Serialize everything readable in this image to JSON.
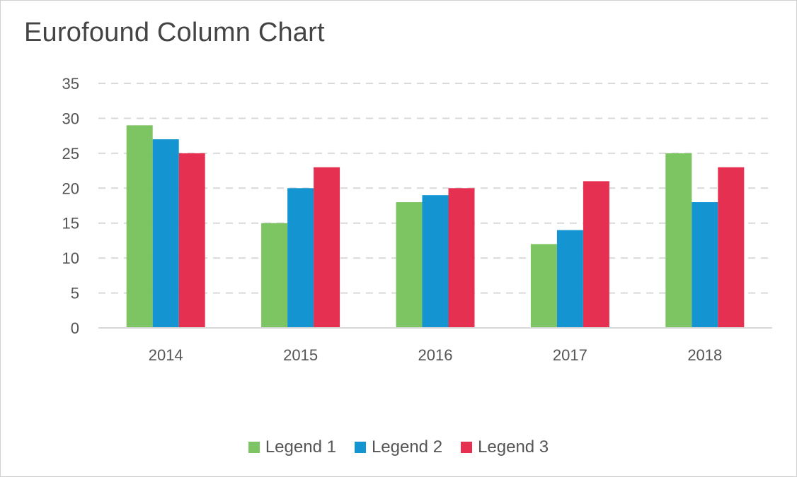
{
  "chart_data": {
    "type": "bar",
    "title": "Eurofound Column Chart",
    "categories": [
      "2014",
      "2015",
      "2016",
      "2017",
      "2018"
    ],
    "series": [
      {
        "name": "Legend 1",
        "color": "#7dc462",
        "values": [
          29,
          15,
          18,
          12,
          25
        ]
      },
      {
        "name": "Legend 2",
        "color": "#1495d1",
        "values": [
          27,
          20,
          19,
          14,
          18
        ]
      },
      {
        "name": "Legend 3",
        "color": "#e63052",
        "values": [
          25,
          23,
          20,
          21,
          23
        ]
      }
    ],
    "ylim": [
      0,
      35
    ],
    "yticks": [
      0,
      5,
      10,
      15,
      20,
      25,
      30,
      35
    ],
    "grid": "horizontal dashed",
    "legend_position": "bottom"
  }
}
